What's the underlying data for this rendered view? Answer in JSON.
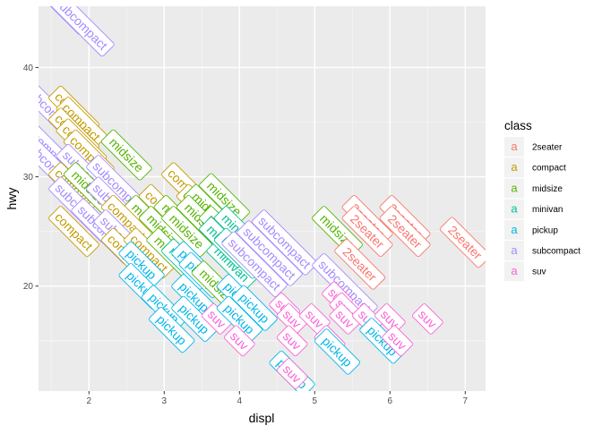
{
  "chart_data": {
    "type": "scatter",
    "geom": "label",
    "title": "",
    "xlabel": "displ",
    "ylabel": "hwy",
    "xlim": [
      1.33,
      7.27
    ],
    "ylim": [
      10.4,
      45.6
    ],
    "x_ticks": [
      2,
      3,
      4,
      5,
      6,
      7
    ],
    "y_ticks": [
      20,
      30,
      40
    ],
    "grid": true,
    "legend": {
      "title": "class",
      "position": "right",
      "glyph": "a",
      "entries": [
        {
          "name": "2seater",
          "color": "#F8766D"
        },
        {
          "name": "compact",
          "color": "#C49A00"
        },
        {
          "name": "midsize",
          "color": "#53B400"
        },
        {
          "name": "minivan",
          "color": "#00C094"
        },
        {
          "name": "pickup",
          "color": "#00B6EB"
        },
        {
          "name": "subcompact",
          "color": "#A58AFF"
        },
        {
          "name": "suv",
          "color": "#FB61D7"
        }
      ]
    },
    "points": [
      {
        "x": 1.6,
        "y": 46,
        "label": "subcompact"
      },
      {
        "x": 1.9,
        "y": 44,
        "label": "subcompact"
      },
      {
        "x": 1.5,
        "y": 36,
        "label": "subcompact"
      },
      {
        "x": 1.8,
        "y": 36,
        "label": "compact"
      },
      {
        "x": 1.9,
        "y": 35,
        "label": "compact"
      },
      {
        "x": 1.8,
        "y": 34,
        "label": "compact"
      },
      {
        "x": 1.9,
        "y": 33,
        "label": "compact"
      },
      {
        "x": 1.4,
        "y": 33,
        "label": "subcompact"
      },
      {
        "x": 2.0,
        "y": 32,
        "label": "compact"
      },
      {
        "x": 2.5,
        "y": 32,
        "label": "midsize"
      },
      {
        "x": 1.5,
        "y": 31,
        "label": "subcompact"
      },
      {
        "x": 2.0,
        "y": 30,
        "label": "subcompact"
      },
      {
        "x": 1.8,
        "y": 29,
        "label": "compact"
      },
      {
        "x": 2.0,
        "y": 29,
        "label": "midsize"
      },
      {
        "x": 2.4,
        "y": 29,
        "label": "subcompact"
      },
      {
        "x": 3.3,
        "y": 29,
        "label": "compact"
      },
      {
        "x": 3.8,
        "y": 28,
        "label": "midsize"
      },
      {
        "x": 1.9,
        "y": 27,
        "label": "subcompact"
      },
      {
        "x": 2.4,
        "y": 27,
        "label": "subcompact"
      },
      {
        "x": 3.0,
        "y": 27,
        "label": "compact"
      },
      {
        "x": 3.5,
        "y": 27,
        "label": "compact"
      },
      {
        "x": 3.6,
        "y": 27,
        "label": "midsize"
      },
      {
        "x": 2.8,
        "y": 26,
        "label": "midsize"
      },
      {
        "x": 3.2,
        "y": 26,
        "label": "midsize"
      },
      {
        "x": 2.5,
        "y": 26,
        "label": "compact"
      },
      {
        "x": 3.5,
        "y": 26,
        "label": "midsize"
      },
      {
        "x": 1.8,
        "y": 25,
        "label": "compact"
      },
      {
        "x": 2.2,
        "y": 25,
        "label": "subcompact"
      },
      {
        "x": 3.0,
        "y": 25,
        "label": "midsize"
      },
      {
        "x": 3.3,
        "y": 25,
        "label": "midsize"
      },
      {
        "x": 3.8,
        "y": 25,
        "label": "midsize"
      },
      {
        "x": 4.0,
        "y": 25,
        "label": "minivan"
      },
      {
        "x": 4.6,
        "y": 24,
        "label": "subcompact"
      },
      {
        "x": 5.7,
        "y": 26,
        "label": "2seater"
      },
      {
        "x": 5.7,
        "y": 25,
        "label": "2seater"
      },
      {
        "x": 6.2,
        "y": 26,
        "label": "2seater"
      },
      {
        "x": 6.2,
        "y": 25,
        "label": "2seater"
      },
      {
        "x": 7.0,
        "y": 24,
        "label": "2seater"
      },
      {
        "x": 5.3,
        "y": 25,
        "label": "midsize"
      },
      {
        "x": 2.5,
        "y": 24,
        "label": "subcompact"
      },
      {
        "x": 2.5,
        "y": 23,
        "label": "compact"
      },
      {
        "x": 2.8,
        "y": 23,
        "label": "compact"
      },
      {
        "x": 3.1,
        "y": 23,
        "label": "midsize"
      },
      {
        "x": 3.3,
        "y": 22,
        "label": "minivan"
      },
      {
        "x": 3.4,
        "y": 22,
        "label": "pickup"
      },
      {
        "x": 3.5,
        "y": 21,
        "label": "pickup"
      },
      {
        "x": 3.9,
        "y": 22,
        "label": "minivan"
      },
      {
        "x": 3.8,
        "y": 24,
        "label": "minivan"
      },
      {
        "x": 4.0,
        "y": 23,
        "label": "minivan"
      },
      {
        "x": 4.4,
        "y": 23,
        "label": "subcompact"
      },
      {
        "x": 4.2,
        "y": 22,
        "label": "subcompact"
      },
      {
        "x": 5.6,
        "y": 22,
        "label": "2seater"
      },
      {
        "x": 5.4,
        "y": 20,
        "label": "subcompact"
      },
      {
        "x": 2.7,
        "y": 22,
        "label": "pickup"
      },
      {
        "x": 2.7,
        "y": 20,
        "label": "pickup"
      },
      {
        "x": 3.7,
        "y": 20,
        "label": "midsize"
      },
      {
        "x": 3.4,
        "y": 19,
        "label": "pickup"
      },
      {
        "x": 3.0,
        "y": 18,
        "label": "pickup"
      },
      {
        "x": 3.4,
        "y": 17,
        "label": "pickup"
      },
      {
        "x": 3.7,
        "y": 17,
        "label": "suv"
      },
      {
        "x": 4.0,
        "y": 19,
        "label": "pickup"
      },
      {
        "x": 4.0,
        "y": 17,
        "label": "pickup"
      },
      {
        "x": 4.2,
        "y": 18,
        "label": "pickup"
      },
      {
        "x": 4.6,
        "y": 18,
        "label": "suv"
      },
      {
        "x": 4.7,
        "y": 17,
        "label": "suv"
      },
      {
        "x": 5.0,
        "y": 17,
        "label": "suv"
      },
      {
        "x": 5.3,
        "y": 19,
        "label": "suv"
      },
      {
        "x": 5.4,
        "y": 18,
        "label": "suv"
      },
      {
        "x": 5.4,
        "y": 17,
        "label": "suv"
      },
      {
        "x": 5.7,
        "y": 17,
        "label": "suv"
      },
      {
        "x": 6.0,
        "y": 17,
        "label": "suv"
      },
      {
        "x": 5.9,
        "y": 15,
        "label": "pickup"
      },
      {
        "x": 6.1,
        "y": 15,
        "label": "suv"
      },
      {
        "x": 6.5,
        "y": 17,
        "label": "suv"
      },
      {
        "x": 5.2,
        "y": 15,
        "label": "suv"
      },
      {
        "x": 4.0,
        "y": 15,
        "label": "suv"
      },
      {
        "x": 4.7,
        "y": 15,
        "label": "suv"
      },
      {
        "x": 3.1,
        "y": 16,
        "label": "pickup"
      },
      {
        "x": 5.3,
        "y": 14,
        "label": "pickup"
      },
      {
        "x": 4.7,
        "y": 12,
        "label": "pickup"
      },
      {
        "x": 4.7,
        "y": 12,
        "label": "suv"
      }
    ]
  }
}
